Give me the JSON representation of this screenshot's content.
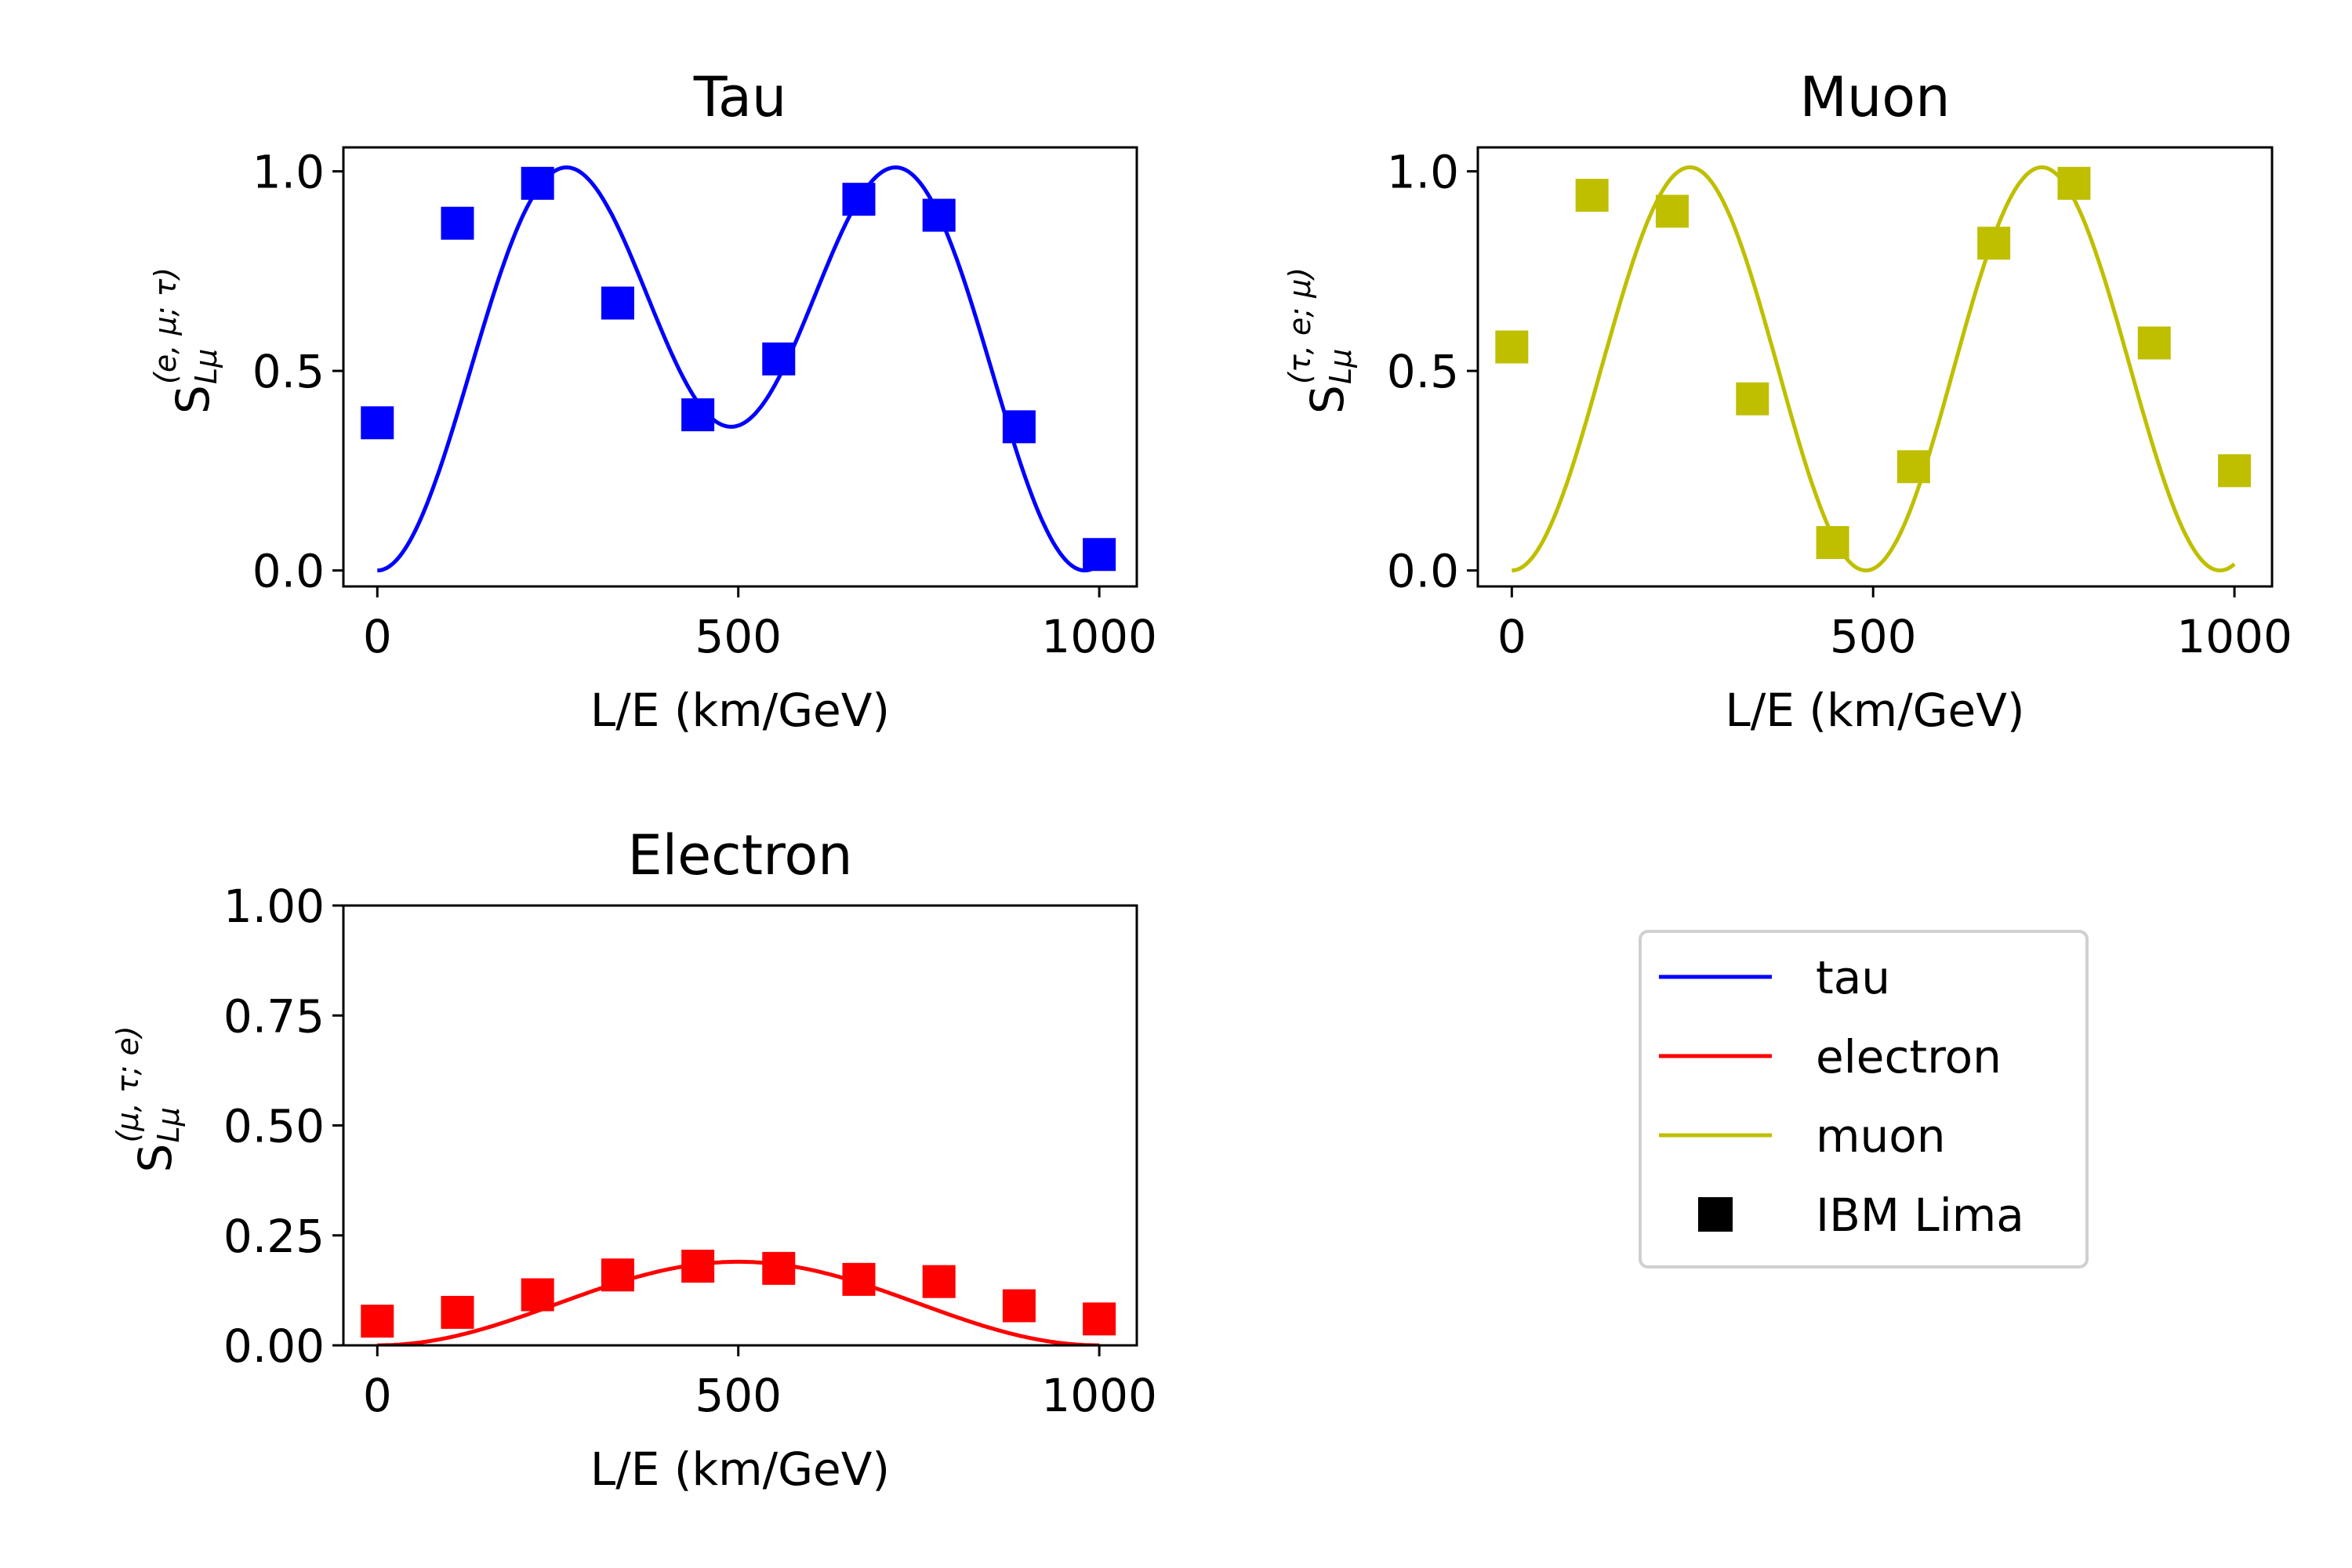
{
  "chart_data": [
    {
      "type": "line",
      "title": "Tau",
      "xlabel": "L/E (km/GeV)",
      "ylabel": {
        "base": "S",
        "sub": "Lμ",
        "sup": "(e, μ; τ)"
      },
      "xlim": [
        -47,
        1052
      ],
      "ylim": [
        -0.04,
        1.06
      ],
      "xticks": [
        0,
        500,
        1000
      ],
      "xtick_labels": [
        "0",
        "500",
        "1000"
      ],
      "yticks": [
        0.0,
        0.5,
        1.0
      ],
      "ytick_labels": [
        "0.0",
        "0.5",
        "1.0"
      ],
      "color": "#0000ff",
      "curve": {
        "name": "tau",
        "kind": "tau",
        "x_range": [
          0,
          1000
        ]
      },
      "markers": {
        "name": "IBM Lima",
        "x": [
          0,
          111,
          222,
          333,
          444,
          556,
          667,
          778,
          889,
          1000
        ],
        "y": [
          0.37,
          0.87,
          0.97,
          0.67,
          0.39,
          0.53,
          0.93,
          0.89,
          0.36,
          0.04
        ]
      }
    },
    {
      "type": "line",
      "title": "Muon",
      "xlabel": "L/E (km/GeV)",
      "ylabel": {
        "base": "S",
        "sub": "Lμ",
        "sup": "(τ, e; μ)"
      },
      "xlim": [
        -47,
        1052
      ],
      "ylim": [
        -0.04,
        1.06
      ],
      "xticks": [
        0,
        500,
        1000
      ],
      "xtick_labels": [
        "0",
        "500",
        "1000"
      ],
      "yticks": [
        0.0,
        0.5,
        1.0
      ],
      "ytick_labels": [
        "0.0",
        "0.5",
        "1.0"
      ],
      "color": "#bfbf00",
      "curve": {
        "name": "muon",
        "kind": "muon",
        "x_range": [
          0,
          1000
        ]
      },
      "markers": {
        "name": "IBM Lima",
        "x": [
          0,
          111,
          222,
          333,
          444,
          556,
          667,
          778,
          889,
          1000
        ],
        "y": [
          0.56,
          0.94,
          0.9,
          0.43,
          0.07,
          0.26,
          0.82,
          0.97,
          0.57,
          0.25
        ]
      }
    },
    {
      "type": "line",
      "title": "Electron",
      "xlabel": "L/E (km/GeV)",
      "ylabel": {
        "base": "S",
        "sub": "Lμ",
        "sup": "(μ, τ; e)"
      },
      "xlim": [
        -47,
        1052
      ],
      "ylim": [
        0.0,
        1.0
      ],
      "xticks": [
        0,
        500,
        1000
      ],
      "xtick_labels": [
        "0",
        "500",
        "1000"
      ],
      "yticks": [
        0.0,
        0.25,
        0.5,
        0.75,
        1.0
      ],
      "ytick_labels": [
        "0.00",
        "0.25",
        "0.50",
        "0.75",
        "1.00"
      ],
      "color": "#ff0000",
      "curve": {
        "name": "electron",
        "kind": "electron",
        "x_range": [
          0,
          1000
        ]
      },
      "markers": {
        "name": "IBM Lima",
        "x": [
          0,
          111,
          222,
          333,
          444,
          556,
          667,
          778,
          889,
          1000
        ],
        "y": [
          0.055,
          0.075,
          0.115,
          0.16,
          0.18,
          0.175,
          0.15,
          0.145,
          0.09,
          0.06
        ]
      }
    }
  ],
  "legend": {
    "placement": "lower-right",
    "entries": [
      {
        "label": "tau",
        "kind": "line",
        "color": "#0000ff"
      },
      {
        "label": "electron",
        "kind": "line",
        "color": "#ff0000"
      },
      {
        "label": "muon",
        "kind": "line",
        "color": "#bfbf00"
      },
      {
        "label": "IBM Lima",
        "kind": "square",
        "color": "#000000"
      }
    ]
  }
}
